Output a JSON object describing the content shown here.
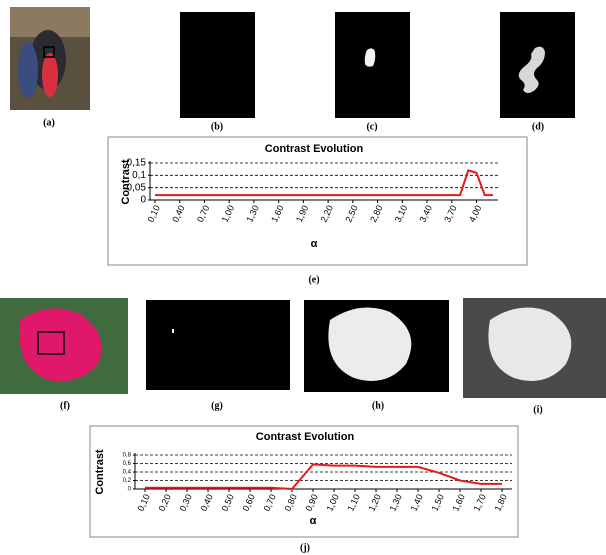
{
  "captions": [
    "(a)",
    "(b)",
    "(c)",
    "(d)",
    "(e)",
    "(f)",
    "(g)",
    "(h)",
    "(i)",
    "(j)"
  ],
  "chart_data": [
    {
      "type": "line",
      "title": "Contrast Evolution",
      "y_label": "Contrast",
      "x_label": "α",
      "x": [
        0.1,
        3.8,
        3.9,
        4.0,
        4.1,
        4.2
      ],
      "values": [
        0.02,
        0.02,
        0.12,
        0.11,
        0.02,
        0.02
      ],
      "color": "#e8191b",
      "xlim": [
        0.1,
        4.2
      ],
      "xticks": [
        {
          "value": 0.1,
          "label": "0,10"
        },
        {
          "value": 0.4,
          "label": "0,40"
        },
        {
          "value": 0.7,
          "label": "0,70"
        },
        {
          "value": 1.0,
          "label": "1,00"
        },
        {
          "value": 1.3,
          "label": "1,30"
        },
        {
          "value": 1.6,
          "label": "1,60"
        },
        {
          "value": 1.9,
          "label": "1,90"
        },
        {
          "value": 2.2,
          "label": "2,20"
        },
        {
          "value": 2.5,
          "label": "2,50"
        },
        {
          "value": 2.8,
          "label": "2,80"
        },
        {
          "value": 3.1,
          "label": "3,10"
        },
        {
          "value": 3.4,
          "label": "3,40"
        },
        {
          "value": 3.7,
          "label": "3,70"
        },
        {
          "value": 4.0,
          "label": "4,00"
        }
      ],
      "ylim": [
        0,
        0.15
      ],
      "yticks": [
        0,
        {
          "value": 0.05,
          "label": "0,05"
        },
        {
          "value": 0.1,
          "label": "0,1"
        },
        {
          "value": 0.15,
          "label": "0,15"
        }
      ],
      "grid": true
    },
    {
      "type": "line",
      "title": "Contrast Evolution",
      "y_label": "Contrast",
      "x_label": "α",
      "x": [
        0.1,
        0.2,
        0.3,
        0.4,
        0.5,
        0.6,
        0.7,
        0.8,
        0.9,
        1.0,
        1.1,
        1.2,
        1.3,
        1.4,
        1.5,
        1.6,
        1.7,
        1.8
      ],
      "values": [
        0.03,
        0.03,
        0.03,
        0.03,
        0.03,
        0.03,
        0.03,
        0,
        0.58,
        0.55,
        0.55,
        0.52,
        0.52,
        0.52,
        0.38,
        0.2,
        0.12,
        0.12
      ],
      "color": "#e8191b",
      "xlim": [
        0.1,
        1.8
      ],
      "xticks": [
        {
          "value": 0.1,
          "label": "0,10"
        },
        {
          "value": 0.2,
          "label": "0,20"
        },
        {
          "value": 0.3,
          "label": "0,30"
        },
        {
          "value": 0.4,
          "label": "0,40"
        },
        {
          "value": 0.5,
          "label": "0,50"
        },
        {
          "value": 0.6,
          "label": "0,60"
        },
        {
          "value": 0.7,
          "label": "0,70"
        },
        {
          "value": 0.8,
          "label": "0,80"
        },
        {
          "value": 0.9,
          "label": "0,90"
        },
        {
          "value": 1.0,
          "label": "1,00"
        },
        {
          "value": 1.1,
          "label": "1,10"
        },
        {
          "value": 1.2,
          "label": "1,20"
        },
        {
          "value": 1.3,
          "label": "1,30"
        },
        {
          "value": 1.4,
          "label": "1,40"
        },
        {
          "value": 1.5,
          "label": "1,50"
        },
        {
          "value": 1.6,
          "label": "1,60"
        },
        {
          "value": 1.7,
          "label": "1,70"
        },
        {
          "value": 1.8,
          "label": "1,80"
        }
      ],
      "ylim": [
        0,
        0.8
      ],
      "yticks": [
        0,
        {
          "value": 0.2,
          "label": "0,2"
        },
        {
          "value": 0.4,
          "label": "0,4"
        },
        {
          "value": 0.6,
          "label": "0,6"
        },
        {
          "value": 0.8,
          "label": "0,8"
        }
      ],
      "grid": true
    }
  ]
}
